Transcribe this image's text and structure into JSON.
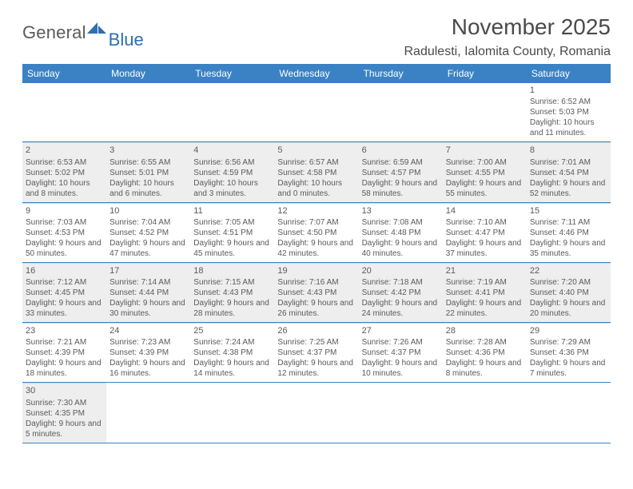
{
  "logo": {
    "word1": "General",
    "word2": "Blue"
  },
  "title": "November 2025",
  "location": "Radulesti, Ialomita County, Romania",
  "colors": {
    "header_bg": "#3b82c4",
    "header_text": "#ffffff",
    "rule": "#3b82c4",
    "cell_rule": "#d8d8d8",
    "shaded": "#eeeeee",
    "text": "#5a5a5a",
    "logo_dark": "#5a5a5a",
    "logo_blue": "#2b6fb0"
  },
  "typography": {
    "title_size": 28,
    "location_size": 16,
    "header_size": 12,
    "daynum_size": 11,
    "body_size": 10,
    "logo_size": 22
  },
  "day_names": [
    "Sunday",
    "Monday",
    "Tuesday",
    "Wednesday",
    "Thursday",
    "Friday",
    "Saturday"
  ],
  "weeks": [
    [
      {
        "empty": true
      },
      {
        "empty": true
      },
      {
        "empty": true
      },
      {
        "empty": true
      },
      {
        "empty": true
      },
      {
        "empty": true
      },
      {
        "num": "1",
        "sunrise": "6:52 AM",
        "sunset": "5:03 PM",
        "daylight": "10 hours and 11 minutes."
      }
    ],
    [
      {
        "num": "2",
        "shaded": true,
        "sunrise": "6:53 AM",
        "sunset": "5:02 PM",
        "daylight": "10 hours and 8 minutes."
      },
      {
        "num": "3",
        "shaded": true,
        "sunrise": "6:55 AM",
        "sunset": "5:01 PM",
        "daylight": "10 hours and 6 minutes."
      },
      {
        "num": "4",
        "shaded": true,
        "sunrise": "6:56 AM",
        "sunset": "4:59 PM",
        "daylight": "10 hours and 3 minutes."
      },
      {
        "num": "5",
        "shaded": true,
        "sunrise": "6:57 AM",
        "sunset": "4:58 PM",
        "daylight": "10 hours and 0 minutes."
      },
      {
        "num": "6",
        "shaded": true,
        "sunrise": "6:59 AM",
        "sunset": "4:57 PM",
        "daylight": "9 hours and 58 minutes."
      },
      {
        "num": "7",
        "shaded": true,
        "sunrise": "7:00 AM",
        "sunset": "4:55 PM",
        "daylight": "9 hours and 55 minutes."
      },
      {
        "num": "8",
        "shaded": true,
        "sunrise": "7:01 AM",
        "sunset": "4:54 PM",
        "daylight": "9 hours and 52 minutes."
      }
    ],
    [
      {
        "num": "9",
        "sunrise": "7:03 AM",
        "sunset": "4:53 PM",
        "daylight": "9 hours and 50 minutes."
      },
      {
        "num": "10",
        "sunrise": "7:04 AM",
        "sunset": "4:52 PM",
        "daylight": "9 hours and 47 minutes."
      },
      {
        "num": "11",
        "sunrise": "7:05 AM",
        "sunset": "4:51 PM",
        "daylight": "9 hours and 45 minutes."
      },
      {
        "num": "12",
        "sunrise": "7:07 AM",
        "sunset": "4:50 PM",
        "daylight": "9 hours and 42 minutes."
      },
      {
        "num": "13",
        "sunrise": "7:08 AM",
        "sunset": "4:48 PM",
        "daylight": "9 hours and 40 minutes."
      },
      {
        "num": "14",
        "sunrise": "7:10 AM",
        "sunset": "4:47 PM",
        "daylight": "9 hours and 37 minutes."
      },
      {
        "num": "15",
        "sunrise": "7:11 AM",
        "sunset": "4:46 PM",
        "daylight": "9 hours and 35 minutes."
      }
    ],
    [
      {
        "num": "16",
        "shaded": true,
        "sunrise": "7:12 AM",
        "sunset": "4:45 PM",
        "daylight": "9 hours and 33 minutes."
      },
      {
        "num": "17",
        "shaded": true,
        "sunrise": "7:14 AM",
        "sunset": "4:44 PM",
        "daylight": "9 hours and 30 minutes."
      },
      {
        "num": "18",
        "shaded": true,
        "sunrise": "7:15 AM",
        "sunset": "4:43 PM",
        "daylight": "9 hours and 28 minutes."
      },
      {
        "num": "19",
        "shaded": true,
        "sunrise": "7:16 AM",
        "sunset": "4:43 PM",
        "daylight": "9 hours and 26 minutes."
      },
      {
        "num": "20",
        "shaded": true,
        "sunrise": "7:18 AM",
        "sunset": "4:42 PM",
        "daylight": "9 hours and 24 minutes."
      },
      {
        "num": "21",
        "shaded": true,
        "sunrise": "7:19 AM",
        "sunset": "4:41 PM",
        "daylight": "9 hours and 22 minutes."
      },
      {
        "num": "22",
        "shaded": true,
        "sunrise": "7:20 AM",
        "sunset": "4:40 PM",
        "daylight": "9 hours and 20 minutes."
      }
    ],
    [
      {
        "num": "23",
        "sunrise": "7:21 AM",
        "sunset": "4:39 PM",
        "daylight": "9 hours and 18 minutes."
      },
      {
        "num": "24",
        "sunrise": "7:23 AM",
        "sunset": "4:39 PM",
        "daylight": "9 hours and 16 minutes."
      },
      {
        "num": "25",
        "sunrise": "7:24 AM",
        "sunset": "4:38 PM",
        "daylight": "9 hours and 14 minutes."
      },
      {
        "num": "26",
        "sunrise": "7:25 AM",
        "sunset": "4:37 PM",
        "daylight": "9 hours and 12 minutes."
      },
      {
        "num": "27",
        "sunrise": "7:26 AM",
        "sunset": "4:37 PM",
        "daylight": "9 hours and 10 minutes."
      },
      {
        "num": "28",
        "sunrise": "7:28 AM",
        "sunset": "4:36 PM",
        "daylight": "9 hours and 8 minutes."
      },
      {
        "num": "29",
        "sunrise": "7:29 AM",
        "sunset": "4:36 PM",
        "daylight": "9 hours and 7 minutes."
      }
    ],
    [
      {
        "num": "30",
        "shaded": true,
        "sunrise": "7:30 AM",
        "sunset": "4:35 PM",
        "daylight": "9 hours and 5 minutes."
      },
      {
        "empty": true
      },
      {
        "empty": true
      },
      {
        "empty": true
      },
      {
        "empty": true
      },
      {
        "empty": true
      },
      {
        "empty": true
      }
    ]
  ],
  "labels": {
    "sunrise": "Sunrise:",
    "sunset": "Sunset:",
    "daylight": "Daylight:"
  }
}
